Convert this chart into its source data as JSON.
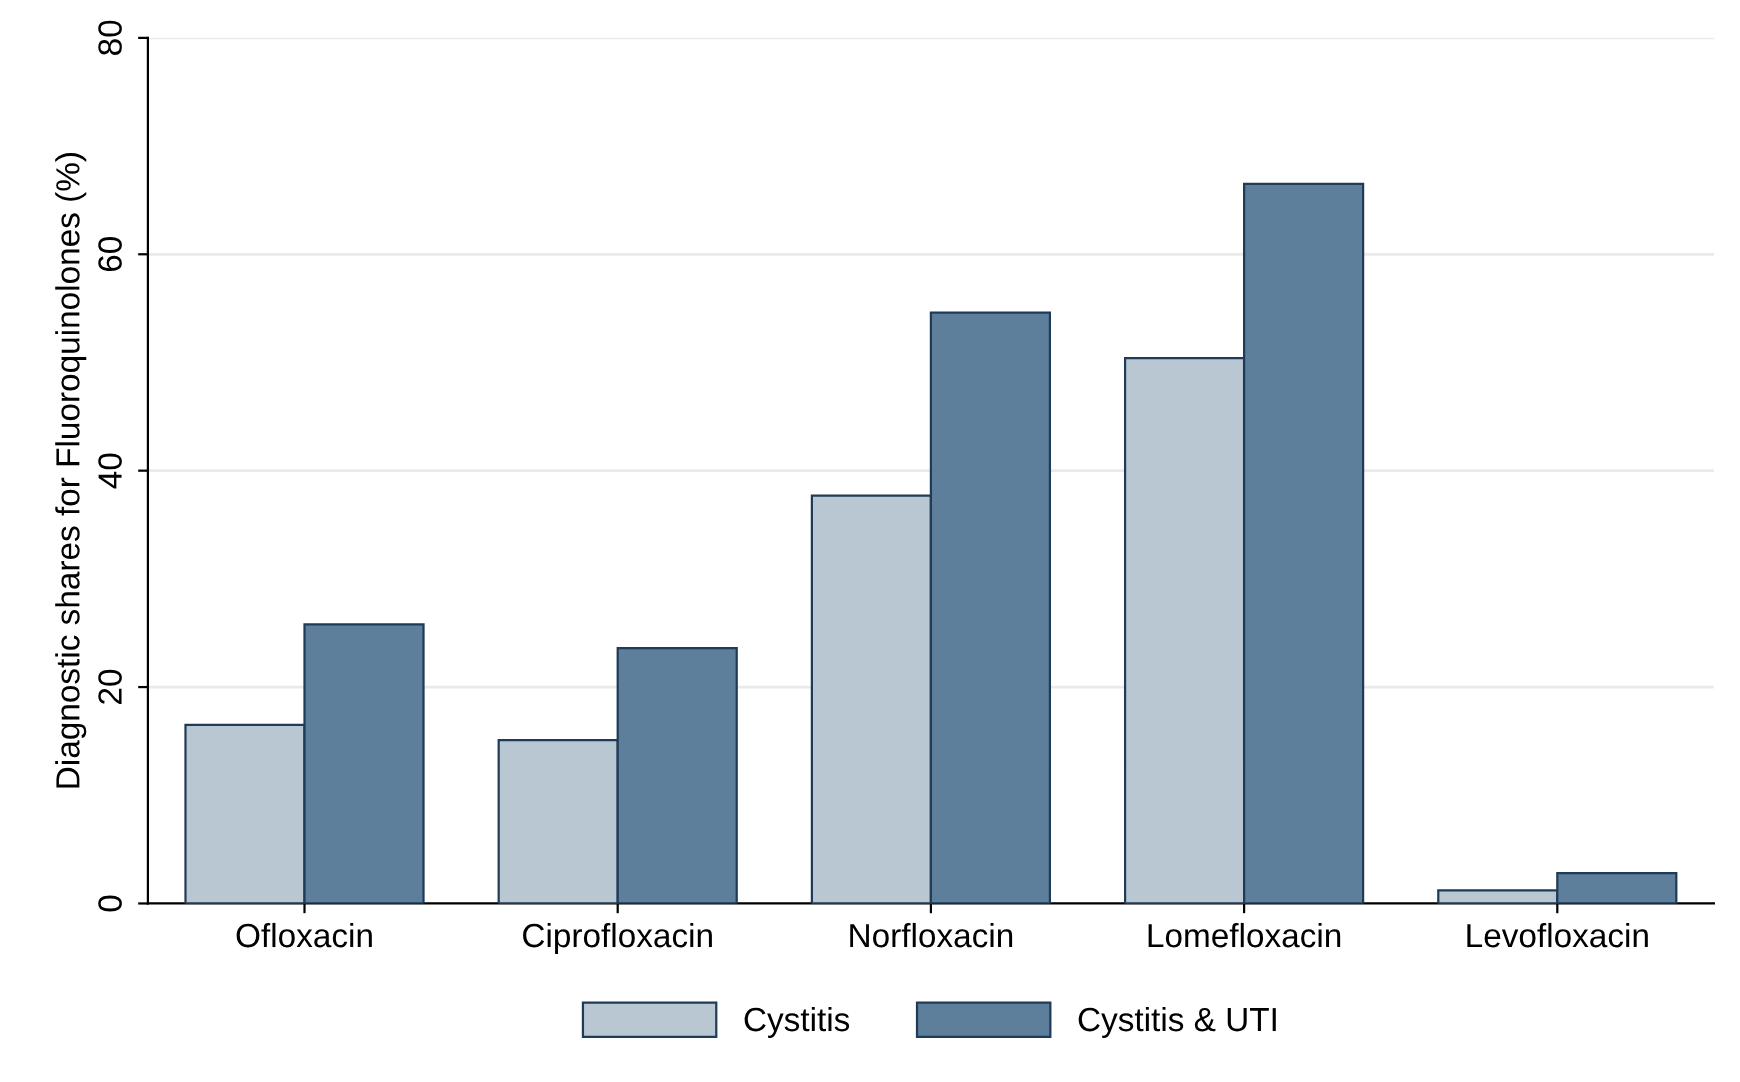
{
  "chart_data": {
    "type": "bar",
    "ylabel": "Diagnostic shares for Fluoroquinolones (%)",
    "categories": [
      "Ofloxacin",
      "Ciprofloxacin",
      "Norfloxacin",
      "Lomefloxacin",
      "Levofloxacin"
    ],
    "series": [
      {
        "name": "Cystitis",
        "color": "#b9c7d3",
        "values": [
          16.5,
          15.1,
          37.7,
          50.4,
          1.2
        ]
      },
      {
        "name": "Cystitis & UTI",
        "color": "#5d7f9b",
        "values": [
          25.8,
          23.6,
          54.6,
          66.5,
          2.8
        ]
      }
    ],
    "ylim": [
      0,
      80
    ],
    "yticks": [
      0,
      20,
      40,
      60,
      80
    ],
    "grid": "y",
    "legend": "bottom"
  }
}
